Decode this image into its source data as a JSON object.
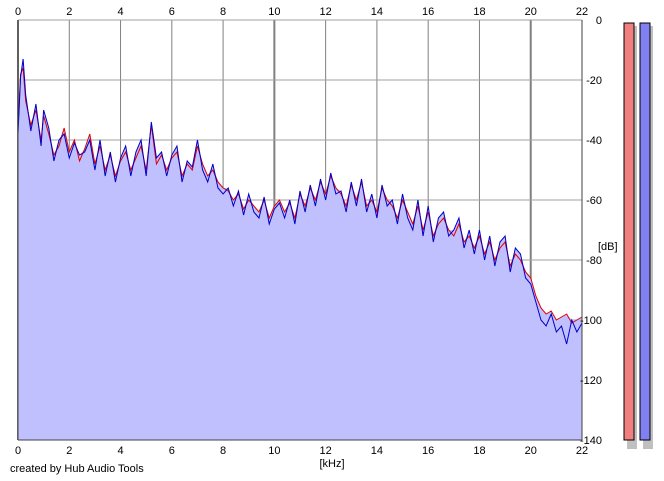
{
  "credit": "created by Hub Audio Tools",
  "chart_data": {
    "type": "area",
    "xlabel": "[kHz]",
    "ylabel": "[dB]",
    "xlim": [
      0,
      22
    ],
    "ylim": [
      -140,
      0
    ],
    "x_ticks": [
      "0",
      "2",
      "4",
      "6",
      "8",
      "10",
      "12",
      "14",
      "16",
      "18",
      "20",
      "22"
    ],
    "y_ticks": [
      "0",
      "-20",
      "-40",
      "-60",
      "-80",
      "-100",
      "-120",
      "-140"
    ],
    "grid": true,
    "fill_color": "#c0c0ff",
    "series": [
      {
        "color": "#e00000",
        "x": [
          0,
          0.1,
          0.2,
          0.3,
          0.5,
          0.7,
          0.9,
          1.0,
          1.2,
          1.4,
          1.6,
          1.8,
          2.0,
          2.2,
          2.4,
          2.6,
          2.8,
          3.0,
          3.2,
          3.4,
          3.6,
          3.8,
          4.0,
          4.2,
          4.4,
          4.6,
          4.8,
          5.0,
          5.2,
          5.4,
          5.6,
          5.8,
          6.0,
          6.2,
          6.4,
          6.6,
          6.8,
          7.0,
          7.2,
          7.4,
          7.6,
          7.8,
          8.0,
          8.2,
          8.4,
          8.6,
          8.8,
          9.0,
          9.2,
          9.4,
          9.6,
          9.8,
          10.0,
          10.2,
          10.4,
          10.6,
          10.8,
          11.0,
          11.2,
          11.4,
          11.6,
          11.8,
          12.0,
          12.2,
          12.4,
          12.6,
          12.8,
          13.0,
          13.2,
          13.4,
          13.6,
          13.8,
          14.0,
          14.2,
          14.4,
          14.6,
          14.8,
          15.0,
          15.2,
          15.4,
          15.6,
          15.8,
          16.0,
          16.2,
          16.4,
          16.6,
          16.8,
          17.0,
          17.2,
          17.4,
          17.6,
          17.8,
          18.0,
          18.2,
          18.4,
          18.6,
          18.8,
          19.0,
          19.2,
          19.4,
          19.6,
          19.8,
          20.0,
          20.2,
          20.4,
          20.6,
          20.8,
          21.0,
          21.2,
          21.4,
          21.6,
          21.8,
          22.0
        ],
        "y": [
          -36,
          -18,
          -16,
          -27,
          -35,
          -30,
          -40,
          -32,
          -38,
          -45,
          -42,
          -36,
          -44,
          -40,
          -47,
          -43,
          -38,
          -48,
          -42,
          -50,
          -45,
          -52,
          -47,
          -44,
          -50,
          -46,
          -42,
          -50,
          -35,
          -48,
          -45,
          -50,
          -46,
          -44,
          -52,
          -48,
          -50,
          -42,
          -48,
          -52,
          -50,
          -54,
          -56,
          -57,
          -60,
          -58,
          -63,
          -60,
          -62,
          -64,
          -60,
          -66,
          -62,
          -60,
          -64,
          -61,
          -66,
          -58,
          -62,
          -56,
          -60,
          -54,
          -58,
          -52,
          -56,
          -58,
          -62,
          -55,
          -60,
          -54,
          -62,
          -60,
          -64,
          -56,
          -60,
          -62,
          -66,
          -60,
          -64,
          -68,
          -62,
          -70,
          -64,
          -72,
          -68,
          -66,
          -70,
          -72,
          -68,
          -74,
          -72,
          -76,
          -72,
          -78,
          -74,
          -80,
          -76,
          -74,
          -82,
          -78,
          -80,
          -84,
          -86,
          -92,
          -96,
          -98,
          -97,
          -100,
          -99,
          -98,
          -101,
          -100,
          -99
        ]
      },
      {
        "color": "#0000c8",
        "x": [
          0,
          0.1,
          0.2,
          0.3,
          0.5,
          0.7,
          0.9,
          1.0,
          1.2,
          1.4,
          1.6,
          1.8,
          2.0,
          2.2,
          2.4,
          2.6,
          2.8,
          3.0,
          3.2,
          3.4,
          3.6,
          3.8,
          4.0,
          4.2,
          4.4,
          4.6,
          4.8,
          5.0,
          5.2,
          5.4,
          5.6,
          5.8,
          6.0,
          6.2,
          6.4,
          6.6,
          6.8,
          7.0,
          7.2,
          7.4,
          7.6,
          7.8,
          8.0,
          8.2,
          8.4,
          8.6,
          8.8,
          9.0,
          9.2,
          9.4,
          9.6,
          9.8,
          10.0,
          10.2,
          10.4,
          10.6,
          10.8,
          11.0,
          11.2,
          11.4,
          11.6,
          11.8,
          12.0,
          12.2,
          12.4,
          12.6,
          12.8,
          13.0,
          13.2,
          13.4,
          13.6,
          13.8,
          14.0,
          14.2,
          14.4,
          14.6,
          14.8,
          15.0,
          15.2,
          15.4,
          15.6,
          15.8,
          16.0,
          16.2,
          16.4,
          16.6,
          16.8,
          17.0,
          17.2,
          17.4,
          17.6,
          17.8,
          18.0,
          18.2,
          18.4,
          18.6,
          18.8,
          19.0,
          19.2,
          19.4,
          19.6,
          19.8,
          20.0,
          20.2,
          20.4,
          20.6,
          20.8,
          21.0,
          21.2,
          21.4,
          21.6,
          21.8,
          22.0
        ],
        "y": [
          -38,
          -19,
          -13,
          -25,
          -37,
          -28,
          -42,
          -30,
          -36,
          -47,
          -40,
          -38,
          -46,
          -41,
          -45,
          -44,
          -40,
          -50,
          -40,
          -52,
          -44,
          -54,
          -46,
          -42,
          -52,
          -44,
          -40,
          -52,
          -34,
          -46,
          -44,
          -52,
          -45,
          -42,
          -54,
          -47,
          -49,
          -40,
          -50,
          -54,
          -48,
          -56,
          -58,
          -56,
          -62,
          -57,
          -65,
          -58,
          -64,
          -66,
          -59,
          -68,
          -63,
          -61,
          -66,
          -60,
          -68,
          -57,
          -64,
          -55,
          -62,
          -53,
          -60,
          -51,
          -58,
          -57,
          -64,
          -54,
          -62,
          -53,
          -64,
          -58,
          -66,
          -55,
          -62,
          -60,
          -68,
          -58,
          -66,
          -70,
          -60,
          -72,
          -62,
          -74,
          -66,
          -64,
          -72,
          -70,
          -66,
          -76,
          -70,
          -78,
          -70,
          -80,
          -72,
          -82,
          -74,
          -72,
          -84,
          -76,
          -78,
          -86,
          -88,
          -94,
          -100,
          -102,
          -98,
          -104,
          -102,
          -108,
          -100,
          -104,
          -101
        ]
      }
    ],
    "level_bars": [
      {
        "color": "#f08080",
        "value": 0
      },
      {
        "color": "#8080f0",
        "value": 0
      }
    ]
  }
}
